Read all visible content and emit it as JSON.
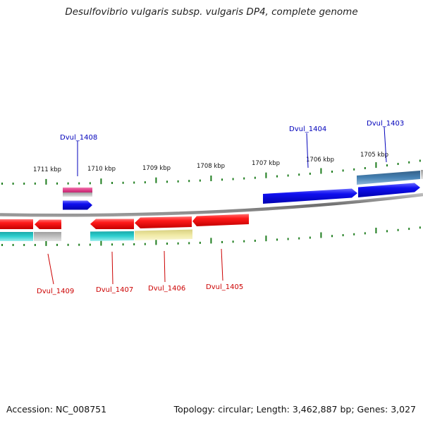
{
  "title": "Desulfovibrio vulgaris subsp. vulgaris DP4, complete genome",
  "footer": {
    "accession": "Accession: NC_008751",
    "topology": "Topology: circular; Length: 3,462,887 bp; Genes: 3,027"
  },
  "ruler": {
    "labels": [
      "1711 kbp",
      "1710 kbp",
      "1709 kbp",
      "1708 kbp",
      "1707 kbp",
      "1706 kbp",
      "1705 kbp"
    ]
  },
  "genes": [
    {
      "id": "Dvul_1408",
      "strand": "forward"
    },
    {
      "id": "Dvul_1404",
      "strand": "forward"
    },
    {
      "id": "Dvul_1403",
      "strand": "forward"
    },
    {
      "id": "Dvul_1409",
      "strand": "reverse"
    },
    {
      "id": "Dvul_1407",
      "strand": "reverse"
    },
    {
      "id": "Dvul_1406",
      "strand": "reverse"
    },
    {
      "id": "Dvul_1405",
      "strand": "reverse"
    }
  ],
  "colors": {
    "forward_gene": "#0a0ae6",
    "reverse_gene": "#ee1111",
    "forward_label": "#0000bb",
    "reverse_label": "#cc0000",
    "tick": "#1e7d1e",
    "backbone": "#8a8a8a",
    "cds_cyan": "#22c4c4",
    "cds_grey": "#b6b6b6",
    "cds_yellow": "#eee8a0",
    "cds_magenta": "#e0408a",
    "cds_steel": "#4682b4"
  }
}
